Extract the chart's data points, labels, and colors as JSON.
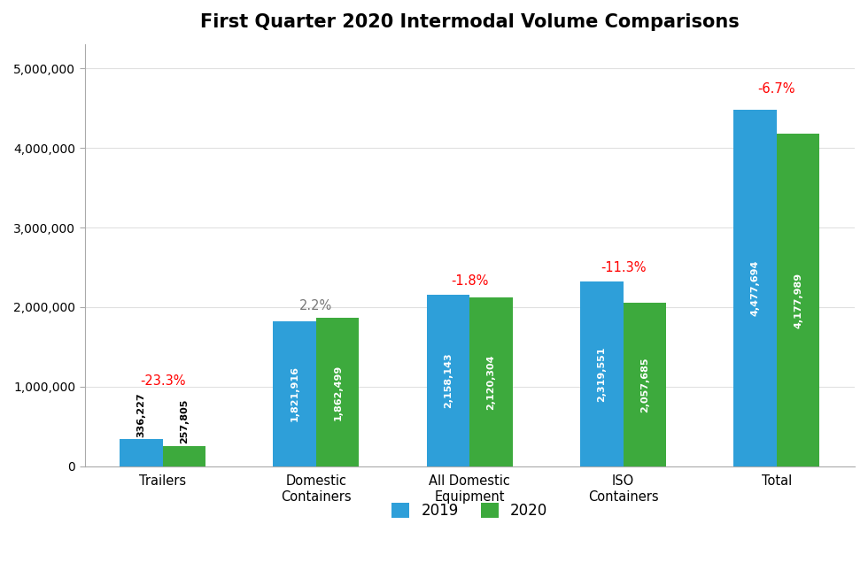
{
  "title": "First Quarter 2020 Intermodal Volume Comparisons",
  "categories": [
    "Trailers",
    "Domestic\nContainers",
    "All Domestic\nEquipment",
    "ISO\nContainers",
    "Total"
  ],
  "values_2019": [
    336227,
    1821916,
    2158143,
    2319551,
    4477694
  ],
  "values_2020": [
    257805,
    1862499,
    2120304,
    2057685,
    4177989
  ],
  "pct_changes": [
    "-23.3%",
    "2.2%",
    "-1.8%",
    "-11.3%",
    "-6.7%"
  ],
  "pct_colors": [
    "red",
    "#777777",
    "red",
    "red",
    "red"
  ],
  "bar_color_2019": "#2E9FD9",
  "bar_color_2020": "#3DAA3D",
  "bar_width": 0.28,
  "ylim": [
    0,
    5300000
  ],
  "yticks": [
    0,
    1000000,
    2000000,
    3000000,
    4000000,
    5000000
  ],
  "background_color": "#FFFFFF",
  "title_fontsize": 15,
  "legend_labels": [
    "2019",
    "2020"
  ],
  "value_fontsize": 8.0,
  "pct_fontsize": 10.5,
  "inside_threshold": 600000,
  "label_color_inside": "white",
  "label_color_outside": "black"
}
